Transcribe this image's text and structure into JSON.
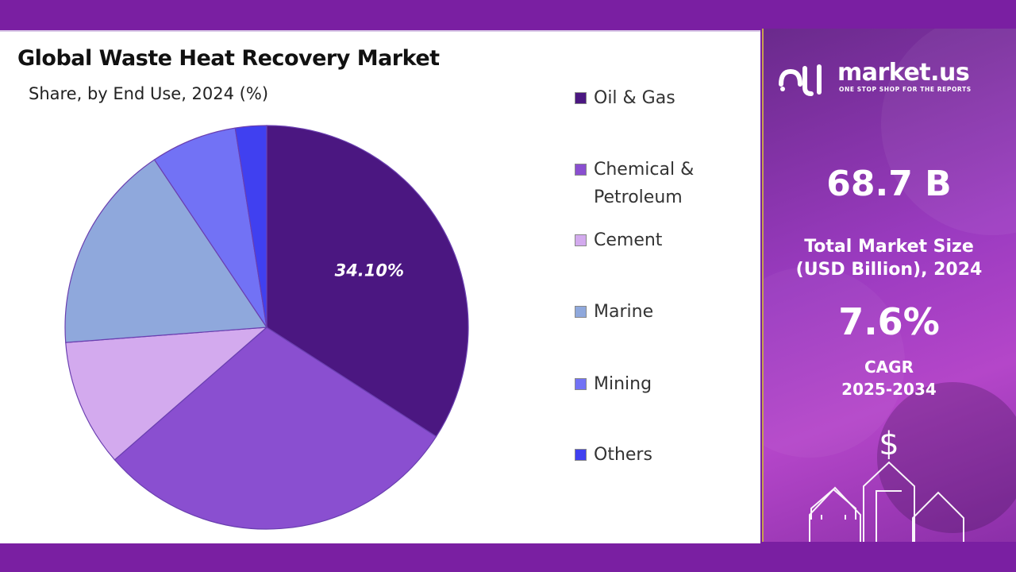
{
  "chart_data": {
    "type": "pie",
    "title": "Global Waste Heat Recovery Market",
    "subtitle": "Share, by End Use, 2024 (%)",
    "categories": [
      "Oil & Gas",
      "Chemical & Petroleum",
      "Cement",
      "Marine",
      "Mining",
      "Others"
    ],
    "values": [
      34.1,
      29.5,
      10.2,
      16.8,
      6.9,
      2.5
    ],
    "data_labels": [
      "34.10%",
      "",
      "",
      "",
      "",
      ""
    ],
    "colors": [
      "#4b1781",
      "#8a4fd0",
      "#d3aaee",
      "#8fa8dc",
      "#7272f5",
      "#4040f0"
    ],
    "legend_position": "right"
  },
  "brand": {
    "name": "market.us",
    "tagline": "ONE STOP SHOP FOR THE REPORTS"
  },
  "stats": {
    "market_size_value": "68.7 B",
    "market_size_label_line1": "Total Market Size",
    "market_size_label_line2": "(USD Billion), 2024",
    "cagr_value": "7.6%",
    "cagr_label_line1": "CAGR",
    "cagr_label_line2": "2025-2034"
  },
  "icons": {
    "currency": "$",
    "logo": "market-us-logo-icon",
    "arrows": "growth-arrows-icon"
  }
}
